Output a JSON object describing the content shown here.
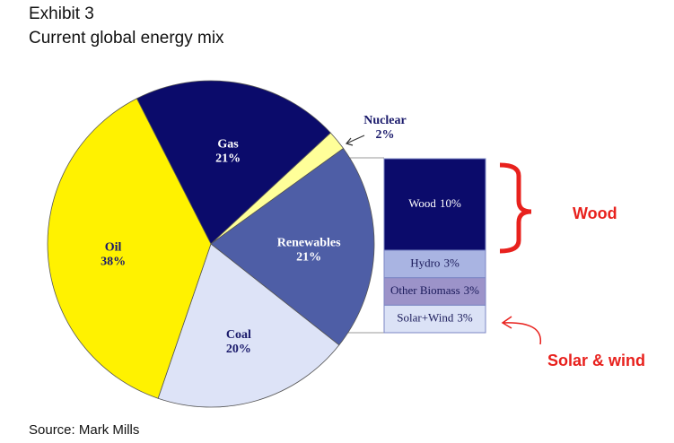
{
  "header": {
    "exhibit": "Exhibit 3",
    "title": "Current global energy mix"
  },
  "chart_data": [
    {
      "type": "pie",
      "categories": [
        "Gas",
        "Nuclear",
        "Renewables",
        "Coal",
        "Oil"
      ],
      "values": [
        21,
        2,
        21,
        20,
        38
      ],
      "value_labels": [
        "21%",
        "2%",
        "21%",
        "20%",
        "38%"
      ],
      "colors": [
        "#0b0b6b",
        "#ffff99",
        "#4e5ea6",
        "#dde3f7",
        "#fff200"
      ]
    },
    {
      "type": "stacked-bar",
      "categories": [
        "Wood",
        "Hydro",
        "Other Biomass",
        "Solar+Wind"
      ],
      "values": [
        10,
        3,
        3,
        3
      ],
      "value_labels": [
        "10%",
        "3%",
        "3%",
        "3%"
      ],
      "colors": [
        "#0b0b6b",
        "#a9b4e2",
        "#9c93c9",
        "#dbe2f6"
      ]
    }
  ],
  "annotations": [
    "Wood",
    "Solar & wind"
  ],
  "source": "Source: Mark Mills"
}
